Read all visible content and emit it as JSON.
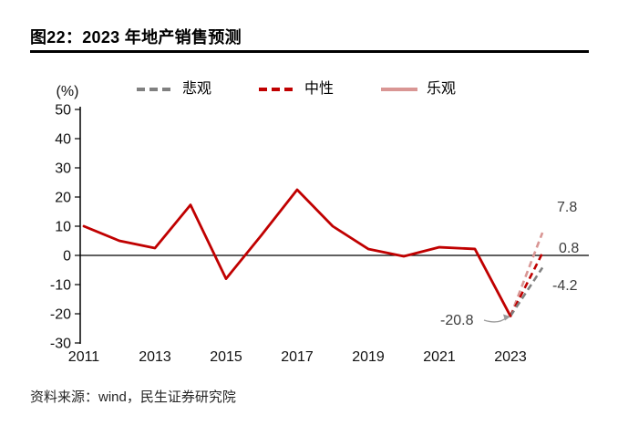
{
  "title": "图22：2023 年地产销售预测",
  "source": "资料来源：wind，民生证券研究院",
  "colors": {
    "main_line": "#c00000",
    "optimistic": "#d99694",
    "neutral": "#c00000",
    "pessimistic": "#808080",
    "axis": "#000000",
    "annotation": "#3d3d3d",
    "connector": "#9a9a9a",
    "title_rule": "#000000"
  },
  "chart_data": {
    "type": "line",
    "title": "2023 年地产销售预测",
    "unit_label": "(%)",
    "ylim": [
      -30,
      50
    ],
    "yticks": [
      50,
      40,
      30,
      20,
      10,
      0,
      -10,
      -20,
      -30
    ],
    "xticks": [
      2011,
      2013,
      2015,
      2017,
      2019,
      2021,
      2023
    ],
    "x": [
      2011,
      2012,
      2013,
      2014,
      2015,
      2016,
      2017,
      2018,
      2019,
      2020,
      2021,
      2022,
      2023
    ],
    "series": [
      {
        "id": "actual",
        "color": "#c00000",
        "style": "solid",
        "values": [
          10,
          5,
          2.5,
          17.3,
          -8,
          7,
          22.5,
          10,
          2.2,
          -0.3,
          2.8,
          2.2,
          -20.8
        ]
      }
    ],
    "forecasts": [
      {
        "id": "optimistic",
        "name": "乐观",
        "color": "#d99694",
        "style": "dashed",
        "from_year": 2023,
        "from_value": -20.8,
        "to_year": 2023.9,
        "value": 7.8,
        "label": "7.8"
      },
      {
        "id": "neutral",
        "name": "中性",
        "color": "#c00000",
        "style": "dashed",
        "from_year": 2023,
        "from_value": -20.8,
        "to_year": 2023.9,
        "value": 0.8,
        "label": "0.8"
      },
      {
        "id": "pessimistic",
        "name": "悲观",
        "color": "#808080",
        "style": "dashed",
        "from_year": 2023,
        "from_value": -20.8,
        "to_year": 2023.9,
        "value": -4.2,
        "label": "-4.2"
      }
    ],
    "legend": [
      {
        "id": "pessimistic",
        "label": "悲观",
        "color": "#808080",
        "dash": true
      },
      {
        "id": "neutral",
        "label": "中性",
        "color": "#c00000",
        "dash": true
      },
      {
        "id": "optimistic",
        "label": "乐观",
        "color": "#d99694",
        "dash": false
      }
    ],
    "annotations": [
      {
        "text": "-20.8",
        "year": 2023,
        "value": -20.8
      }
    ],
    "legend_position": "top",
    "grid": "zero-line-only"
  }
}
